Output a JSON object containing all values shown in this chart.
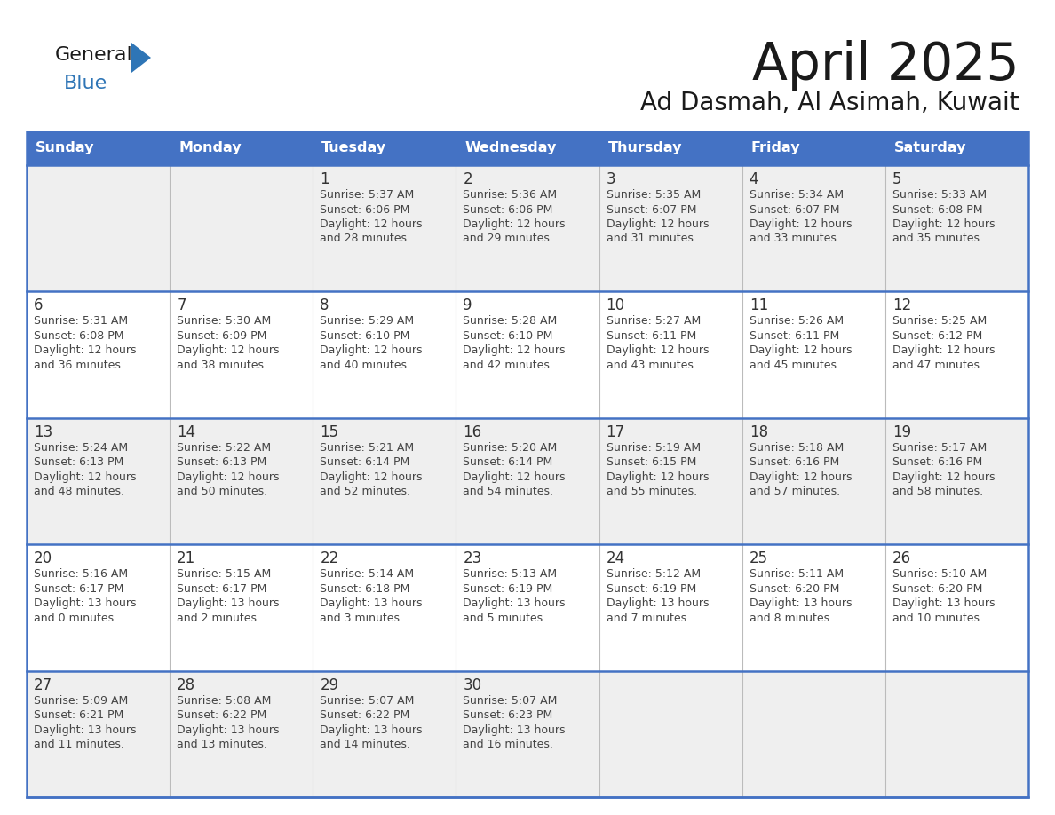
{
  "title": "April 2025",
  "subtitle": "Ad Dasmah, Al Asimah, Kuwait",
  "days_of_week": [
    "Sunday",
    "Monday",
    "Tuesday",
    "Wednesday",
    "Thursday",
    "Friday",
    "Saturday"
  ],
  "header_bg": "#4472C4",
  "header_text": "#FFFFFF",
  "row_bg_even": "#EFEFEF",
  "row_bg_odd": "#FFFFFF",
  "day_number_color": "#333333",
  "info_text_color": "#444444",
  "border_color": "#4472C4",
  "title_color": "#1a1a1a",
  "subtitle_color": "#1a1a1a",
  "logo_general_color": "#1a1a1a",
  "logo_blue_color": "#2E75B6",
  "calendar_data": [
    [
      {
        "day": null,
        "sunrise": null,
        "sunset": null,
        "daylight": null
      },
      {
        "day": null,
        "sunrise": null,
        "sunset": null,
        "daylight": null
      },
      {
        "day": 1,
        "sunrise": "5:37 AM",
        "sunset": "6:06 PM",
        "daylight": "12 hours\nand 28 minutes."
      },
      {
        "day": 2,
        "sunrise": "5:36 AM",
        "sunset": "6:06 PM",
        "daylight": "12 hours\nand 29 minutes."
      },
      {
        "day": 3,
        "sunrise": "5:35 AM",
        "sunset": "6:07 PM",
        "daylight": "12 hours\nand 31 minutes."
      },
      {
        "day": 4,
        "sunrise": "5:34 AM",
        "sunset": "6:07 PM",
        "daylight": "12 hours\nand 33 minutes."
      },
      {
        "day": 5,
        "sunrise": "5:33 AM",
        "sunset": "6:08 PM",
        "daylight": "12 hours\nand 35 minutes."
      }
    ],
    [
      {
        "day": 6,
        "sunrise": "5:31 AM",
        "sunset": "6:08 PM",
        "daylight": "12 hours\nand 36 minutes."
      },
      {
        "day": 7,
        "sunrise": "5:30 AM",
        "sunset": "6:09 PM",
        "daylight": "12 hours\nand 38 minutes."
      },
      {
        "day": 8,
        "sunrise": "5:29 AM",
        "sunset": "6:10 PM",
        "daylight": "12 hours\nand 40 minutes."
      },
      {
        "day": 9,
        "sunrise": "5:28 AM",
        "sunset": "6:10 PM",
        "daylight": "12 hours\nand 42 minutes."
      },
      {
        "day": 10,
        "sunrise": "5:27 AM",
        "sunset": "6:11 PM",
        "daylight": "12 hours\nand 43 minutes."
      },
      {
        "day": 11,
        "sunrise": "5:26 AM",
        "sunset": "6:11 PM",
        "daylight": "12 hours\nand 45 minutes."
      },
      {
        "day": 12,
        "sunrise": "5:25 AM",
        "sunset": "6:12 PM",
        "daylight": "12 hours\nand 47 minutes."
      }
    ],
    [
      {
        "day": 13,
        "sunrise": "5:24 AM",
        "sunset": "6:13 PM",
        "daylight": "12 hours\nand 48 minutes."
      },
      {
        "day": 14,
        "sunrise": "5:22 AM",
        "sunset": "6:13 PM",
        "daylight": "12 hours\nand 50 minutes."
      },
      {
        "day": 15,
        "sunrise": "5:21 AM",
        "sunset": "6:14 PM",
        "daylight": "12 hours\nand 52 minutes."
      },
      {
        "day": 16,
        "sunrise": "5:20 AM",
        "sunset": "6:14 PM",
        "daylight": "12 hours\nand 54 minutes."
      },
      {
        "day": 17,
        "sunrise": "5:19 AM",
        "sunset": "6:15 PM",
        "daylight": "12 hours\nand 55 minutes."
      },
      {
        "day": 18,
        "sunrise": "5:18 AM",
        "sunset": "6:16 PM",
        "daylight": "12 hours\nand 57 minutes."
      },
      {
        "day": 19,
        "sunrise": "5:17 AM",
        "sunset": "6:16 PM",
        "daylight": "12 hours\nand 58 minutes."
      }
    ],
    [
      {
        "day": 20,
        "sunrise": "5:16 AM",
        "sunset": "6:17 PM",
        "daylight": "13 hours\nand 0 minutes."
      },
      {
        "day": 21,
        "sunrise": "5:15 AM",
        "sunset": "6:17 PM",
        "daylight": "13 hours\nand 2 minutes."
      },
      {
        "day": 22,
        "sunrise": "5:14 AM",
        "sunset": "6:18 PM",
        "daylight": "13 hours\nand 3 minutes."
      },
      {
        "day": 23,
        "sunrise": "5:13 AM",
        "sunset": "6:19 PM",
        "daylight": "13 hours\nand 5 minutes."
      },
      {
        "day": 24,
        "sunrise": "5:12 AM",
        "sunset": "6:19 PM",
        "daylight": "13 hours\nand 7 minutes."
      },
      {
        "day": 25,
        "sunrise": "5:11 AM",
        "sunset": "6:20 PM",
        "daylight": "13 hours\nand 8 minutes."
      },
      {
        "day": 26,
        "sunrise": "5:10 AM",
        "sunset": "6:20 PM",
        "daylight": "13 hours\nand 10 minutes."
      }
    ],
    [
      {
        "day": 27,
        "sunrise": "5:09 AM",
        "sunset": "6:21 PM",
        "daylight": "13 hours\nand 11 minutes."
      },
      {
        "day": 28,
        "sunrise": "5:08 AM",
        "sunset": "6:22 PM",
        "daylight": "13 hours\nand 13 minutes."
      },
      {
        "day": 29,
        "sunrise": "5:07 AM",
        "sunset": "6:22 PM",
        "daylight": "13 hours\nand 14 minutes."
      },
      {
        "day": 30,
        "sunrise": "5:07 AM",
        "sunset": "6:23 PM",
        "daylight": "13 hours\nand 16 minutes."
      },
      {
        "day": null,
        "sunrise": null,
        "sunset": null,
        "daylight": null
      },
      {
        "day": null,
        "sunrise": null,
        "sunset": null,
        "daylight": null
      },
      {
        "day": null,
        "sunrise": null,
        "sunset": null,
        "daylight": null
      }
    ]
  ]
}
